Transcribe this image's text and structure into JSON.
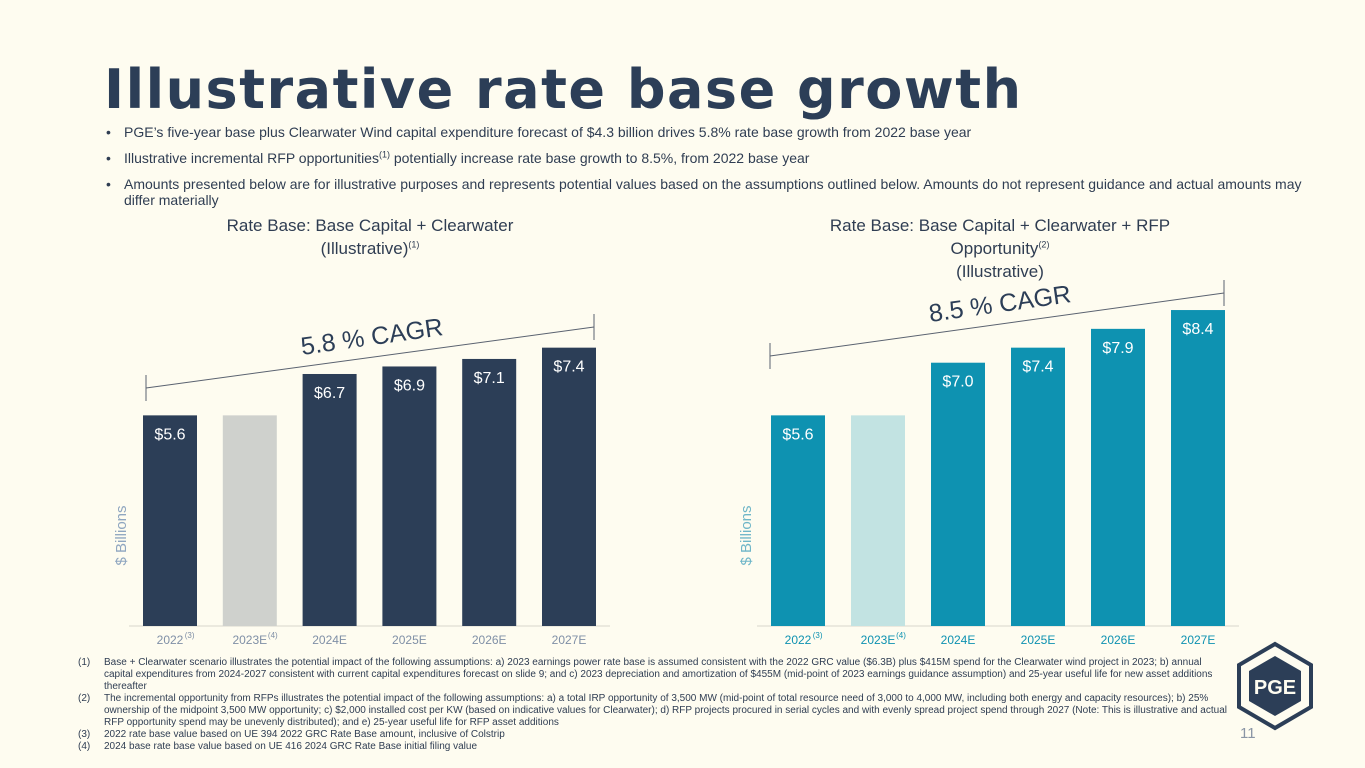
{
  "title": "Illustrative rate base growth",
  "bullets": [
    {
      "pre": "PGE’s five-year base plus Clearwater Wind capital expenditure forecast of $4.3 billion drives 5.8% rate base growth from 2022 base year",
      "sup": "",
      "post": ""
    },
    {
      "pre": "Illustrative incremental RFP opportunities",
      "sup": "(1)",
      "post": " potentially increase rate base growth to 8.5%, from 2022 base year"
    },
    {
      "pre": "Amounts presented below are for illustrative purposes and represents potential values based on the assumptions outlined below. Amounts do not represent guidance and actual amounts may differ materially",
      "sup": "",
      "post": ""
    }
  ],
  "charts": {
    "left": {
      "title_line1": "Rate Base: Base Capital + Clearwater",
      "title_line2": "(Illustrative)",
      "title_sup": "(1)"
    },
    "right": {
      "title_line1": "Rate Base: Base Capital + Clearwater + RFP",
      "title_line2": "Opportunity",
      "title_sup": "(2)",
      "title_line3": "(Illustrative)"
    }
  },
  "chart_data": [
    {
      "type": "bar",
      "title": "Rate Base: Base Capital + Clearwater (Illustrative)(1)",
      "ylabel": "$ Billions",
      "categories": [
        "2022",
        "2023E",
        "2024E",
        "2025E",
        "2026E",
        "2027E"
      ],
      "category_sups": [
        "(3)",
        "(4)",
        "",
        "",
        "",
        ""
      ],
      "values": [
        5.6,
        5.6,
        6.7,
        6.9,
        7.1,
        7.4
      ],
      "labels": [
        "$5.6",
        "",
        "$6.7",
        "$6.9",
        "$7.1",
        "$7.4"
      ],
      "colors": [
        "#2c3e57",
        "#cfd1cd",
        "#2c3e57",
        "#2c3e57",
        "#2c3e57",
        "#2c3e57"
      ],
      "cagr_label": "5.8 % CAGR",
      "ylim": [
        0,
        8.8
      ]
    },
    {
      "type": "bar",
      "title": "Rate Base: Base Capital + Clearwater + RFP Opportunity(2) (Illustrative)",
      "ylabel": "$ Billions",
      "categories": [
        "2022",
        "2023E",
        "2024E",
        "2025E",
        "2026E",
        "2027E"
      ],
      "category_sups": [
        "(3)",
        "(4)",
        "",
        "",
        "",
        ""
      ],
      "values": [
        5.6,
        5.6,
        7.0,
        7.4,
        7.9,
        8.4
      ],
      "labels": [
        "$5.6",
        "",
        "$7.0",
        "$7.4",
        "$7.9",
        "$8.4"
      ],
      "colors": [
        "#0e92b1",
        "#c2e3e2",
        "#0e92b1",
        "#0e92b1",
        "#0e92b1",
        "#0e92b1"
      ],
      "cagr_label": "8.5 % CAGR",
      "ylim": [
        0,
        8.8
      ]
    }
  ],
  "footnotes": [
    {
      "num": "(1)",
      "text": "Base + Clearwater scenario illustrates the potential impact of the following assumptions: a) 2023 earnings power rate base is assumed consistent with the 2022 GRC value ($6.3B) plus $415M spend for the Clearwater wind project in 2023; b) annual capital expenditures from 2024-2027 consistent with current capital expenditures forecast on slide 9; and c) 2023 depreciation and amortization of $455M (mid-point of 2023 earnings guidance assumption) and 25-year useful life for new asset additions thereafter"
    },
    {
      "num": "(2)",
      "text": "The incremental opportunity from RFPs illustrates the potential  impact of the following assumptions: a) a total IRP opportunity of 3,500 MW (mid-point of total resource need of 3,000 to 4,000 MW, including both energy and capacity resources); b) 25% ownership of the midpoint 3,500 MW opportunity; c) $2,000 installed cost per KW (based on indicative values for Clearwater); d) RFP projects procured in serial cycles and with evenly spread project spend through 2027 (Note: This is illustrative and actual RFP opportunity spend may be unevenly distributed); and e) 25-year useful life for RFP asset additions"
    },
    {
      "num": "(3)",
      "text": "2022 rate base value based on UE 394 2022 GRC Rate Base amount, inclusive of Colstrip"
    },
    {
      "num": "(4)",
      "text": "2024 base rate base value based on UE 416 2024 GRC Rate Base initial filing value"
    }
  ],
  "logo_text": "PGE",
  "page_number": "11"
}
